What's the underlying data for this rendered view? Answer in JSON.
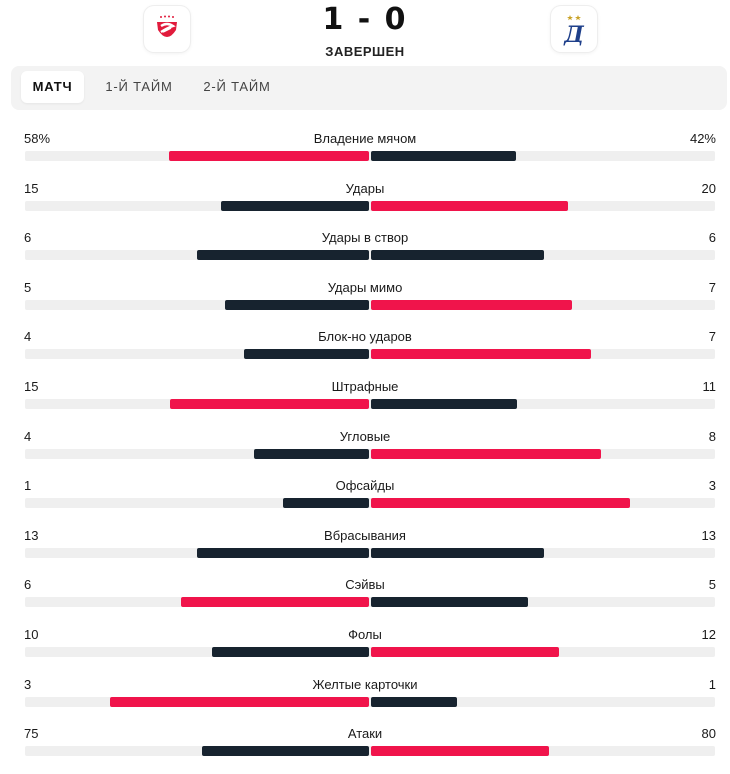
{
  "match": {
    "score": "1 - 0",
    "status": "ЗАВЕРШЕН"
  },
  "colors": {
    "red": "#f0144b",
    "dark": "#17232f",
    "track": "#efefef"
  },
  "tabs": [
    {
      "label": "МАТЧ",
      "active": true
    },
    {
      "label": "1-Й ТАЙМ",
      "active": false
    },
    {
      "label": "2-Й ТАЙМ",
      "active": false
    }
  ],
  "stats": [
    {
      "name": "Владение мячом",
      "left": "58%",
      "right": "42%",
      "lv": 58,
      "rv": 42,
      "lead": "left"
    },
    {
      "name": "Удары",
      "left": "15",
      "right": "20",
      "lv": 15,
      "rv": 20,
      "lead": "right"
    },
    {
      "name": "Удары в створ",
      "left": "6",
      "right": "6",
      "lv": 6,
      "rv": 6,
      "lead": "none"
    },
    {
      "name": "Удары мимо",
      "left": "5",
      "right": "7",
      "lv": 5,
      "rv": 7,
      "lead": "right"
    },
    {
      "name": "Блок-но ударов",
      "left": "4",
      "right": "7",
      "lv": 4,
      "rv": 7,
      "lead": "right"
    },
    {
      "name": "Штрафные",
      "left": "15",
      "right": "11",
      "lv": 15,
      "rv": 11,
      "lead": "left"
    },
    {
      "name": "Угловые",
      "left": "4",
      "right": "8",
      "lv": 4,
      "rv": 8,
      "lead": "right"
    },
    {
      "name": "Офсайды",
      "left": "1",
      "right": "3",
      "lv": 1,
      "rv": 3,
      "lead": "right"
    },
    {
      "name": "Вбрасывания",
      "left": "13",
      "right": "13",
      "lv": 13,
      "rv": 13,
      "lead": "none"
    },
    {
      "name": "Сэйвы",
      "left": "6",
      "right": "5",
      "lv": 6,
      "rv": 5,
      "lead": "left"
    },
    {
      "name": "Фолы",
      "left": "10",
      "right": "12",
      "lv": 10,
      "rv": 12,
      "lead": "right"
    },
    {
      "name": "Желтые карточки",
      "left": "3",
      "right": "1",
      "lv": 3,
      "rv": 1,
      "lead": "left"
    },
    {
      "name": "Атаки",
      "left": "75",
      "right": "80",
      "lv": 75,
      "rv": 80,
      "lead": "right"
    }
  ]
}
